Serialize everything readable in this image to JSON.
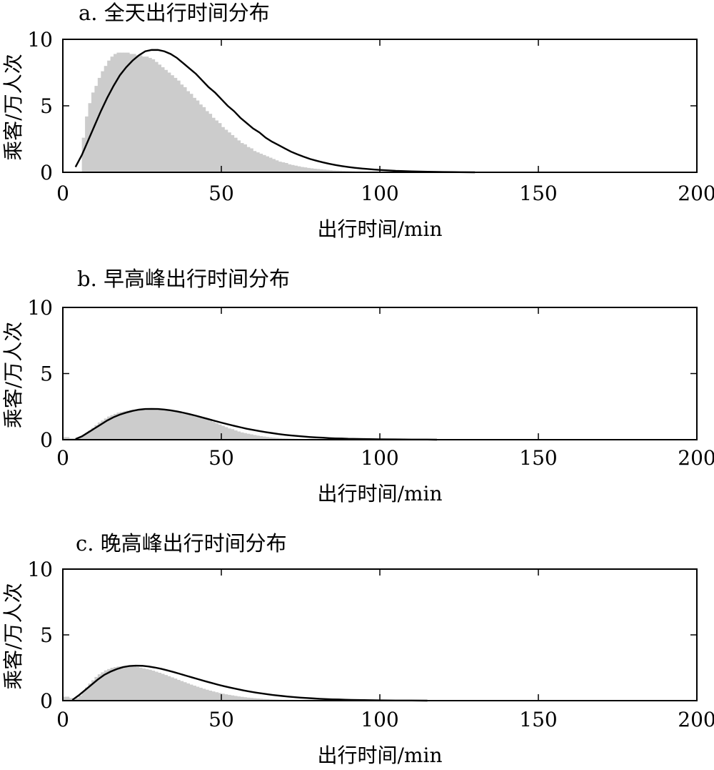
{
  "chart_data": [
    {
      "type": "bar",
      "title": "a. 全天出行时间分布",
      "xlabel": "出行时间/min",
      "ylabel": "乘客/万人次",
      "xlim": [
        0,
        200
      ],
      "ylim": [
        0,
        10
      ],
      "xticks": [
        "0",
        "50",
        "100",
        "150",
        "200"
      ],
      "yticks": [
        "0",
        "5",
        "10"
      ],
      "grid": false,
      "bar_color": "#cccccc",
      "line_color": "#000000",
      "histogram": {
        "bin_start": 6,
        "bin_width": 1,
        "values": [
          2.6,
          4.2,
          5.2,
          6.0,
          6.5,
          7.1,
          7.6,
          8.0,
          8.4,
          8.7,
          8.9,
          9.0,
          9.0,
          9.0,
          9.0,
          8.9,
          8.9,
          8.8,
          8.8,
          8.7,
          8.7,
          8.6,
          8.5,
          8.3,
          8.1,
          7.9,
          7.7,
          7.5,
          7.3,
          7.1,
          6.9,
          6.6,
          6.4,
          6.1,
          5.9,
          5.6,
          5.4,
          5.1,
          4.9,
          4.6,
          4.4,
          4.1,
          3.9,
          3.7,
          3.4,
          3.2,
          3.0,
          2.8,
          2.6,
          2.4,
          2.2,
          2.1,
          1.9,
          1.8,
          1.6,
          1.5,
          1.4,
          1.3,
          1.2,
          1.1,
          1.0,
          0.9,
          0.8,
          0.75,
          0.7,
          0.6,
          0.55,
          0.5,
          0.45,
          0.4,
          0.37,
          0.33,
          0.3,
          0.27,
          0.25,
          0.22,
          0.2,
          0.18,
          0.16,
          0.14,
          0.13,
          0.12,
          0.1,
          0.09,
          0.08,
          0.07,
          0.06,
          0.06,
          0.05,
          0.05,
          0.04,
          0.04,
          0.03,
          0.03,
          0.03,
          0.02,
          0.02,
          0.02,
          0.02,
          0.02,
          0.01,
          0.01,
          0.01,
          0.01,
          0.01,
          0.01,
          0.01,
          0.01,
          0.01,
          0.01,
          0.01,
          0.01,
          0.01,
          0.01,
          0.01,
          0.01,
          0.01,
          0.01,
          0.01,
          0.01,
          0.01,
          0.01,
          0.01,
          0.01,
          0.01,
          0.01,
          0.01,
          0.01,
          0.01,
          0.01,
          0.01,
          0.01,
          0.01,
          0.01,
          0.01,
          0.01,
          0.01,
          0.01,
          0.01,
          0.01,
          0.01,
          0.01
        ]
      },
      "fit_curve": {
        "x": [
          4,
          6,
          8,
          10,
          12,
          14,
          16,
          18,
          20,
          22,
          24,
          26,
          28,
          30,
          32,
          34,
          36,
          38,
          40,
          42,
          44,
          46,
          48,
          50,
          52,
          54,
          56,
          58,
          60,
          62,
          64,
          66,
          68,
          70,
          72,
          74,
          76,
          78,
          80,
          82,
          84,
          86,
          88,
          90,
          92,
          94,
          96,
          98,
          100,
          105,
          110,
          115,
          120,
          125,
          130
        ],
        "y": [
          0.4,
          1.3,
          2.4,
          3.5,
          4.6,
          5.6,
          6.5,
          7.3,
          7.9,
          8.4,
          8.8,
          9.1,
          9.2,
          9.2,
          9.1,
          8.9,
          8.6,
          8.2,
          7.8,
          7.4,
          6.9,
          6.4,
          6.0,
          5.5,
          5.0,
          4.6,
          4.1,
          3.7,
          3.3,
          3.0,
          2.6,
          2.3,
          2.05,
          1.8,
          1.55,
          1.35,
          1.17,
          1.0,
          0.87,
          0.75,
          0.64,
          0.55,
          0.47,
          0.4,
          0.34,
          0.29,
          0.25,
          0.21,
          0.18,
          0.11,
          0.07,
          0.04,
          0.02,
          0.01,
          0.0
        ]
      }
    },
    {
      "type": "bar",
      "title": "b. 早高峰出行时间分布",
      "xlabel": "出行时间/min",
      "ylabel": "乘客/万人次",
      "xlim": [
        0,
        200
      ],
      "ylim": [
        0,
        10
      ],
      "xticks": [
        "0",
        "50",
        "100",
        "150",
        "200"
      ],
      "yticks": [
        "0",
        "5",
        "10"
      ],
      "grid": false,
      "bar_color": "#cccccc",
      "line_color": "#000000",
      "histogram": {
        "bin_start": 0,
        "bin_width": 1,
        "values": [
          0.2,
          0.2,
          0.1,
          0.1,
          0.1,
          0.15,
          0.3,
          0.5,
          0.7,
          0.9,
          1.1,
          1.3,
          1.45,
          1.6,
          1.75,
          1.85,
          1.95,
          2.05,
          2.1,
          2.15,
          2.2,
          2.25,
          2.25,
          2.25,
          2.25,
          2.25,
          2.25,
          2.25,
          2.25,
          2.25,
          2.25,
          2.25,
          2.25,
          2.2,
          2.2,
          2.15,
          2.1,
          2.05,
          2.0,
          1.95,
          1.9,
          1.85,
          1.75,
          1.7,
          1.6,
          1.55,
          1.45,
          1.35,
          1.25,
          1.15,
          1.05,
          0.95,
          0.85,
          0.8,
          0.7,
          0.62,
          0.55,
          0.5,
          0.45,
          0.4,
          0.35,
          0.31,
          0.27,
          0.24,
          0.21,
          0.18,
          0.16,
          0.14,
          0.12,
          0.1,
          0.09,
          0.08,
          0.07,
          0.06,
          0.05,
          0.05,
          0.04,
          0.04,
          0.03,
          0.03,
          0.02,
          0.02,
          0.02,
          0.02,
          0.01,
          0.01,
          0.01,
          0.01,
          0.01,
          0.01,
          0.01,
          0.01,
          0.01,
          0.01,
          0.01,
          0.01,
          0.01,
          0.01,
          0.01,
          0.01,
          0.01,
          0.01,
          0.01,
          0.01,
          0.01,
          0.01,
          0.01,
          0.01,
          0.01,
          0.01,
          0.01,
          0.01,
          0.01,
          0.01,
          0.01,
          0.01,
          0.01,
          0.01,
          0.01,
          0.01,
          0.01,
          0.01,
          0.01,
          0.01,
          0.01,
          0.01,
          0.01,
          0.01,
          0.01,
          0.01,
          0.01,
          0.01,
          0.01,
          0.01,
          0.01,
          0.01,
          0.01,
          0.01,
          0.01,
          0.01,
          0.01,
          0.01,
          0.01,
          0.01,
          0.01,
          0.01,
          0.01,
          0.01,
          0.01,
          0.01,
          0.01,
          0.01,
          0.01,
          0.01,
          0.01,
          0.01,
          0.01,
          0.01,
          0.01,
          0.01,
          0.01,
          0.01,
          0.01,
          0.01,
          0.01,
          0.01,
          0.01,
          0.01,
          0.01,
          0.01,
          0.01,
          0.01,
          0.01,
          0.01,
          0.01,
          0.01,
          0.01,
          0.01,
          0.01,
          0.01,
          0.01,
          0.01,
          0.01,
          0.01,
          0.01,
          0.01,
          0.01,
          0.01,
          0.01,
          0.01,
          0.01,
          0.01,
          0.01,
          0.01,
          0.01,
          0.01,
          0.01,
          0.01,
          0.01,
          0.01,
          0.01
        ]
      },
      "fit_curve": {
        "x": [
          4,
          6,
          8,
          10,
          12,
          14,
          16,
          18,
          20,
          22,
          24,
          26,
          28,
          30,
          32,
          34,
          36,
          38,
          40,
          42,
          44,
          46,
          48,
          50,
          52,
          54,
          56,
          58,
          60,
          62,
          64,
          66,
          68,
          70,
          72,
          74,
          76,
          78,
          80,
          82,
          84,
          86,
          88,
          90,
          95,
          100,
          105,
          110,
          115,
          118
        ],
        "y": [
          0.05,
          0.25,
          0.55,
          0.85,
          1.15,
          1.45,
          1.7,
          1.9,
          2.05,
          2.18,
          2.27,
          2.32,
          2.33,
          2.32,
          2.28,
          2.22,
          2.14,
          2.04,
          1.93,
          1.81,
          1.68,
          1.55,
          1.42,
          1.29,
          1.17,
          1.05,
          0.94,
          0.83,
          0.74,
          0.65,
          0.57,
          0.5,
          0.43,
          0.37,
          0.32,
          0.28,
          0.24,
          0.2,
          0.17,
          0.15,
          0.12,
          0.1,
          0.09,
          0.07,
          0.05,
          0.03,
          0.02,
          0.01,
          0.01,
          0.0
        ]
      }
    },
    {
      "type": "bar",
      "title": "c. 晚高峰出行时间分布",
      "xlabel": "出行时间/min",
      "ylabel": "乘客/万人次",
      "xlim": [
        0,
        200
      ],
      "ylim": [
        0,
        10
      ],
      "xticks": [
        "0",
        "50",
        "100",
        "150",
        "200"
      ],
      "yticks": [
        "0",
        "5",
        "10"
      ],
      "grid": false,
      "bar_color": "#cccccc",
      "line_color": "#000000",
      "histogram": {
        "bin_start": 0,
        "bin_width": 1,
        "values": [
          0.3,
          0.3,
          0.2,
          0.1,
          0.2,
          0.4,
          0.7,
          1.0,
          1.3,
          1.55,
          1.8,
          2.0,
          2.15,
          2.3,
          2.4,
          2.5,
          2.55,
          2.6,
          2.6,
          2.6,
          2.6,
          2.6,
          2.58,
          2.55,
          2.5,
          2.45,
          2.4,
          2.35,
          2.28,
          2.2,
          2.12,
          2.04,
          1.95,
          1.86,
          1.77,
          1.68,
          1.58,
          1.49,
          1.4,
          1.31,
          1.22,
          1.14,
          1.06,
          0.98,
          0.9,
          0.83,
          0.76,
          0.7,
          0.64,
          0.58,
          0.53,
          0.48,
          0.44,
          0.4,
          0.36,
          0.32,
          0.29,
          0.26,
          0.23,
          0.21,
          0.19,
          0.17,
          0.15,
          0.13,
          0.12,
          0.1,
          0.09,
          0.08,
          0.07,
          0.06,
          0.06,
          0.05,
          0.04,
          0.04,
          0.03,
          0.03,
          0.03,
          0.02,
          0.02,
          0.02,
          0.02,
          0.01,
          0.01,
          0.01,
          0.01,
          0.01,
          0.01,
          0.01,
          0.01,
          0.01,
          0.01,
          0.01,
          0.01,
          0.01,
          0.01,
          0.01,
          0.01,
          0.01,
          0.01,
          0.01,
          0.01,
          0.01,
          0.01,
          0.01,
          0.01,
          0.01,
          0.01,
          0.01,
          0.01,
          0.01,
          0.01,
          0.01,
          0.01,
          0.01,
          0.01,
          0.01,
          0.01,
          0.01,
          0.01,
          0.01,
          0.01
        ]
      },
      "fit_curve": {
        "x": [
          3,
          5,
          7,
          9,
          11,
          13,
          15,
          17,
          19,
          21,
          23,
          25,
          27,
          29,
          31,
          33,
          35,
          37,
          39,
          41,
          43,
          45,
          47,
          49,
          51,
          53,
          55,
          57,
          59,
          61,
          63,
          65,
          67,
          69,
          71,
          73,
          75,
          77,
          79,
          81,
          83,
          85,
          87,
          89,
          91,
          93,
          95,
          100,
          105,
          110,
          115
        ],
        "y": [
          0.05,
          0.4,
          0.8,
          1.2,
          1.6,
          1.95,
          2.2,
          2.4,
          2.55,
          2.63,
          2.66,
          2.65,
          2.6,
          2.52,
          2.42,
          2.3,
          2.17,
          2.03,
          1.89,
          1.75,
          1.61,
          1.47,
          1.34,
          1.21,
          1.09,
          0.98,
          0.88,
          0.78,
          0.69,
          0.61,
          0.54,
          0.47,
          0.41,
          0.36,
          0.31,
          0.27,
          0.23,
          0.2,
          0.17,
          0.14,
          0.12,
          0.1,
          0.09,
          0.07,
          0.06,
          0.05,
          0.04,
          0.02,
          0.01,
          0.01,
          0.0
        ]
      }
    }
  ]
}
